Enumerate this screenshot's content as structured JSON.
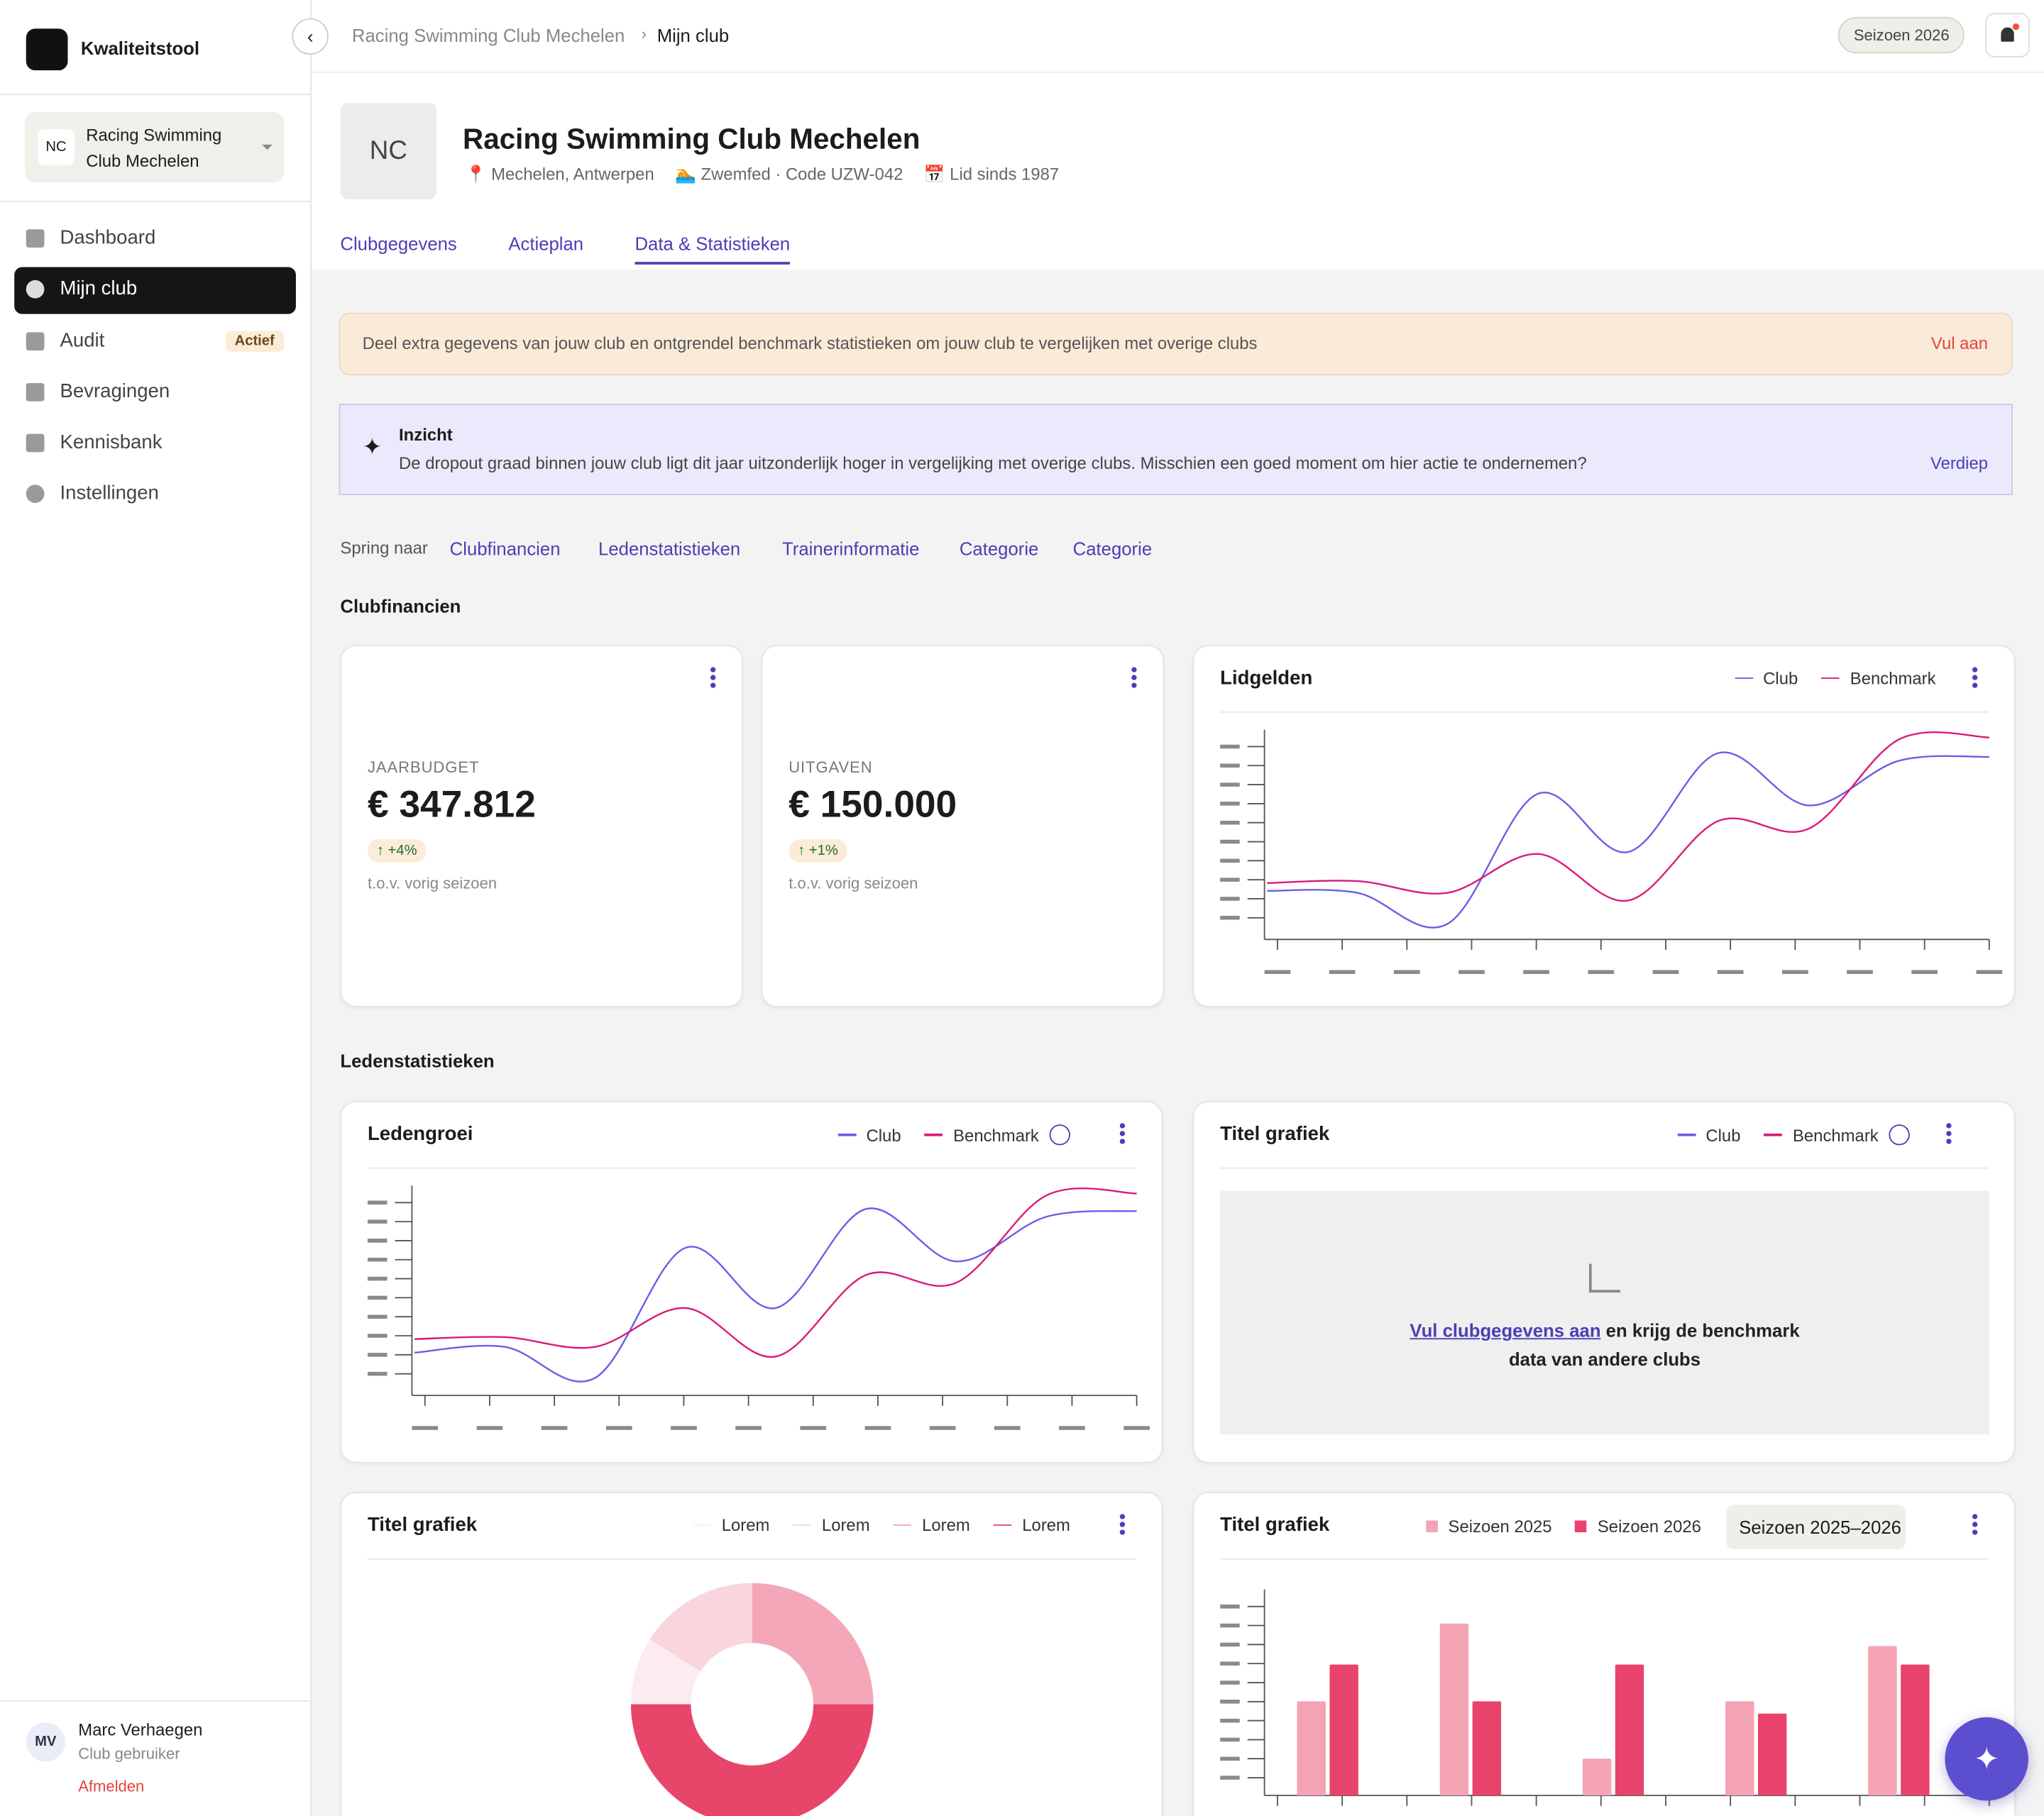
{
  "sidebar": {
    "app_name": "Kwaliteitstool",
    "club": {
      "initials": "NC",
      "name": "Racing Swimming Club Mechelen"
    },
    "nav": [
      "Dashboard",
      "Mijn club",
      "Audit",
      "Bevragingen",
      "Kennisbank",
      "Instellingen"
    ],
    "audit_badge": "Actief",
    "user": {
      "initials": "MV",
      "name": "Marc Verhaegen",
      "role": "Club gebruiker",
      "logout": "Afmelden"
    }
  },
  "topbar": {
    "breadcrumb": [
      "Racing Swimming Club Mechelen",
      "Mijn club"
    ],
    "season": "Seizoen 2026"
  },
  "header": {
    "initials": "NC",
    "title": "Racing Swimming Club Mechelen",
    "meta": [
      "Mechelen, Antwerpen",
      "Zwemfed · Code UZW-042",
      "Lid sinds 1987"
    ],
    "tabs": [
      "Clubgegevens",
      "Actieplan",
      "Data & Statistieken"
    ]
  },
  "banner": {
    "text": "Deel extra gegevens van jouw club en ontgrendel benchmark statistieken om jouw club te vergelijken met overige clubs",
    "action": "Vul aan"
  },
  "insight": {
    "title": "Inzicht",
    "text": "De dropout graad binnen jouw club ligt dit jaar uitzonderlijk hoger in vergelijking met overige clubs. Misschien een goed moment om hier actie te ondernemen?",
    "action": "Verdiep"
  },
  "jump": {
    "label": "Spring naar",
    "links": [
      "Clubfinancien",
      "Ledenstatistieken",
      "Trainerinformatie",
      "Categorie",
      "Categorie"
    ]
  },
  "sections": [
    "Clubfinancien",
    "Ledenstatistieken"
  ],
  "kpis": [
    {
      "label": "JAARBUDGET",
      "value": "€ 347.812",
      "change": "↑ +4%",
      "note": "t.o.v. vorig seizoen"
    },
    {
      "label": "UITGAVEN",
      "value": "€ 150.000",
      "change": "↑ +1%",
      "note": "t.o.v. vorig seizoen"
    }
  ],
  "chart_data": [
    {
      "type": "line",
      "title": "Lidgelden",
      "categories": [
        null,
        null,
        null,
        null,
        null,
        null,
        null,
        null,
        null
      ],
      "ylim": [
        0,
        100
      ],
      "series": [
        {
          "name": "Club",
          "color": "#6a5de8",
          "values": [
            21,
            20,
            4,
            71,
            41,
            92,
            65,
            88,
            90
          ]
        },
        {
          "name": "Benchmark",
          "color": "#d81b7a",
          "values": [
            25,
            26,
            20,
            40,
            16,
            57,
            53,
            99,
            100
          ]
        }
      ]
    },
    {
      "type": "line",
      "title": "Ledengroei",
      "categories": [
        null,
        null,
        null,
        null,
        null,
        null,
        null,
        null,
        null
      ],
      "ylim": [
        0,
        100
      ],
      "series": [
        {
          "name": "Club",
          "color": "#6a5de8",
          "values": [
            18,
            21,
            5,
            72,
            41,
            92,
            65,
            88,
            91
          ]
        },
        {
          "name": "Benchmark",
          "color": "#d81b7a",
          "values": [
            25,
            26,
            21,
            41,
            16,
            58,
            54,
            99,
            100
          ]
        }
      ]
    },
    {
      "type": "empty",
      "title": "Titel grafiek",
      "series": [
        {
          "name": "Club",
          "color": "#6a5de8"
        },
        {
          "name": "Benchmark",
          "color": "#d81b7a"
        }
      ],
      "message": {
        "link": "Vul clubgegevens aan",
        "text": "en krijg de benchmark data van andere clubs"
      }
    },
    {
      "type": "pie",
      "title": "Titel grafiek",
      "categories": [
        "Lorem",
        "Lorem",
        "Lorem",
        "Lorem"
      ],
      "values": [
        9,
        16,
        25,
        50
      ],
      "colors": [
        "#fcebef",
        "#f9d5de",
        "#f4a7b9",
        "#e8456a"
      ]
    },
    {
      "type": "bar",
      "title": "Titel grafiek",
      "categories": [
        null,
        null,
        null,
        null,
        null
      ],
      "ylim": [
        0,
        100
      ],
      "control": "Seizoen 2025–2026",
      "series": [
        {
          "name": "Seizoen 2025",
          "color": "#f4a3b4",
          "values": [
            46,
            84,
            18,
            46,
            73
          ]
        },
        {
          "name": "Seizoen 2026",
          "color": "#e8436a",
          "values": [
            64,
            46,
            64,
            40,
            64
          ]
        }
      ]
    }
  ]
}
